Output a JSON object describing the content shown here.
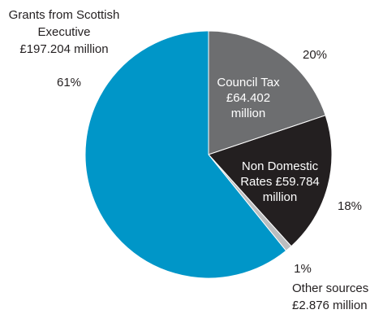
{
  "chart_data": {
    "type": "pie",
    "title": "",
    "slices": [
      {
        "label_lines": [
          "Council Tax",
          "£64.402",
          "million"
        ],
        "percent_label": "20%",
        "value": 64.402,
        "color": "#6d6e70",
        "text_color": "#ffffff"
      },
      {
        "label_lines": [
          "Non Domestic",
          "Rates £59.784",
          "million"
        ],
        "percent_label": "18%",
        "value": 59.784,
        "color": "#231f20",
        "text_color": "#ffffff"
      },
      {
        "label_lines": [
          "Other sources",
          "£2.876 million"
        ],
        "percent_label": "1%",
        "value": 2.876,
        "color": "#bcbec0",
        "text_color": "#231f20"
      },
      {
        "label_lines": [
          "Grants from Scottish",
          "Executive",
          "£197.204 million"
        ],
        "percent_label": "61%",
        "value": 197.204,
        "color": "#0096c8",
        "text_color": "#231f20"
      }
    ]
  }
}
